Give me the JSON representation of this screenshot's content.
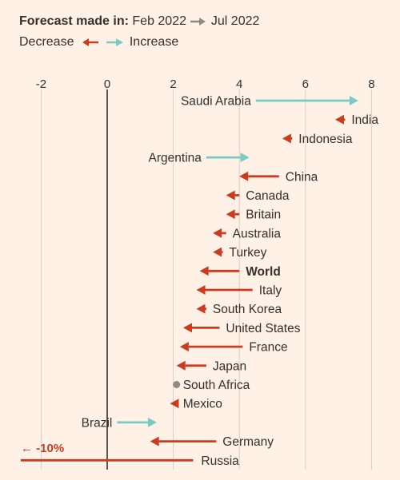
{
  "legend": {
    "heading": "Forecast made in:",
    "from": "Feb 2022",
    "to": "Jul 2022",
    "decrease": "Decrease",
    "increase": "Increase"
  },
  "colors": {
    "background": "#fff1e5",
    "decrease": "#cc3b1f",
    "increase": "#7ac9c3",
    "unchanged": "#8f8a85",
    "zero_line": "#33302e",
    "grid": "#d9cfc6",
    "text": "#33302e",
    "legend_arrow": "#8f8a85"
  },
  "chart_data": {
    "type": "dumbbell-arrow",
    "xlim": [
      -3,
      8.8
    ],
    "x_ticks": [
      -2,
      0,
      2,
      4,
      6,
      8
    ],
    "x_tick_labels": [
      "-2",
      "0",
      "2",
      "4",
      "6",
      "8"
    ],
    "grid": true,
    "clipped_note": "← -10%",
    "rows": [
      {
        "country": "Saudi Arabia",
        "feb_2022": 4.5,
        "jul_2022": 7.6
      },
      {
        "country": "India",
        "feb_2022": 7.2,
        "jul_2022": 6.9
      },
      {
        "country": "Indonesia",
        "feb_2022": 5.6,
        "jul_2022": 5.3
      },
      {
        "country": "Argentina",
        "feb_2022": 3.0,
        "jul_2022": 4.3
      },
      {
        "country": "China",
        "feb_2022": 5.2,
        "jul_2022": 4.0
      },
      {
        "country": "Canada",
        "feb_2022": 4.0,
        "jul_2022": 3.6
      },
      {
        "country": "Britain",
        "feb_2022": 4.0,
        "jul_2022": 3.6
      },
      {
        "country": "Australia",
        "feb_2022": 3.6,
        "jul_2022": 3.2
      },
      {
        "country": "Turkey",
        "feb_2022": 3.5,
        "jul_2022": 3.2
      },
      {
        "country": "World",
        "feb_2022": 4.0,
        "jul_2022": 2.8,
        "bold": true
      },
      {
        "country": "Italy",
        "feb_2022": 4.4,
        "jul_2022": 2.7
      },
      {
        "country": "South Korea",
        "feb_2022": 3.0,
        "jul_2022": 2.7
      },
      {
        "country": "United States",
        "feb_2022": 3.4,
        "jul_2022": 2.3
      },
      {
        "country": "France",
        "feb_2022": 4.1,
        "jul_2022": 2.2
      },
      {
        "country": "Japan",
        "feb_2022": 3.0,
        "jul_2022": 2.1
      },
      {
        "country": "South Africa",
        "feb_2022": 2.1,
        "jul_2022": 2.1
      },
      {
        "country": "Mexico",
        "feb_2022": 2.1,
        "jul_2022": 1.9
      },
      {
        "country": "Brazil",
        "feb_2022": 0.3,
        "jul_2022": 1.5
      },
      {
        "country": "Germany",
        "feb_2022": 3.3,
        "jul_2022": 1.3
      },
      {
        "country": "Russia",
        "feb_2022": 2.6,
        "jul_2022": -10.0,
        "clipped": true
      }
    ]
  }
}
